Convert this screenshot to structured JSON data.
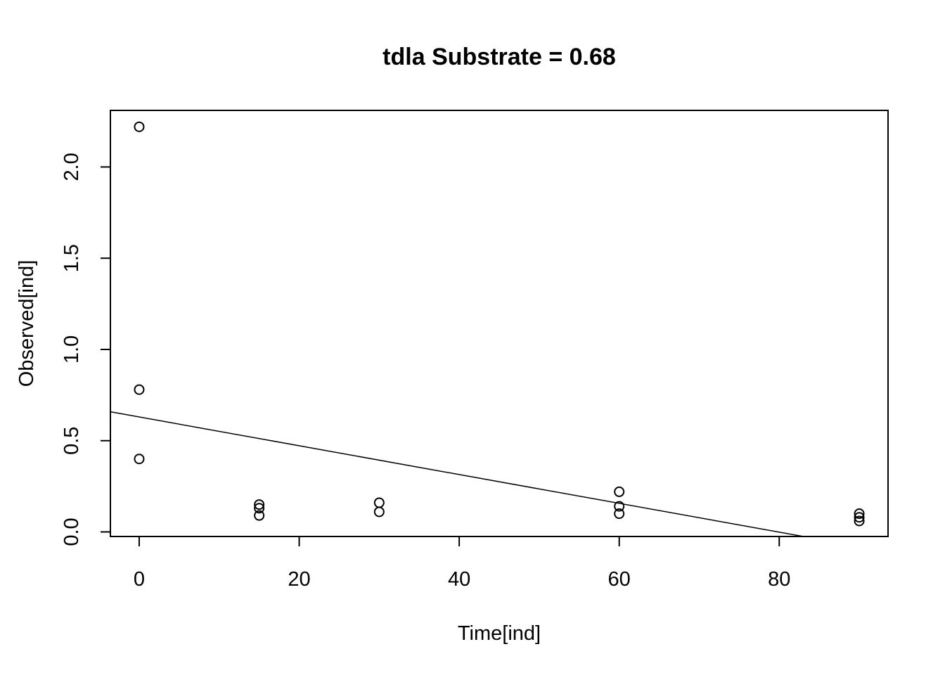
{
  "chart_data": {
    "type": "scatter",
    "title": "tdla Substrate = 0.68",
    "xlabel": "Time[ind]",
    "ylabel": "Observed[ind]",
    "xlim": [
      -3.6,
      93.6
    ],
    "ylim": [
      -0.025,
      2.31
    ],
    "x_ticks": [
      0,
      20,
      40,
      60,
      80
    ],
    "y_ticks": [
      0.0,
      0.5,
      1.0,
      1.5,
      2.0
    ],
    "grid": false,
    "points": [
      {
        "x": 0,
        "y": 2.22
      },
      {
        "x": 0,
        "y": 0.78
      },
      {
        "x": 0,
        "y": 0.4
      },
      {
        "x": 15,
        "y": 0.15
      },
      {
        "x": 15,
        "y": 0.13
      },
      {
        "x": 15,
        "y": 0.09
      },
      {
        "x": 30,
        "y": 0.16
      },
      {
        "x": 30,
        "y": 0.11
      },
      {
        "x": 60,
        "y": 0.22
      },
      {
        "x": 60,
        "y": 0.14
      },
      {
        "x": 60,
        "y": 0.1
      },
      {
        "x": 90,
        "y": 0.1
      },
      {
        "x": 90,
        "y": 0.08
      },
      {
        "x": 90,
        "y": 0.06
      }
    ],
    "fit_line": {
      "intercept": 0.63,
      "slope": -0.00789
    }
  }
}
